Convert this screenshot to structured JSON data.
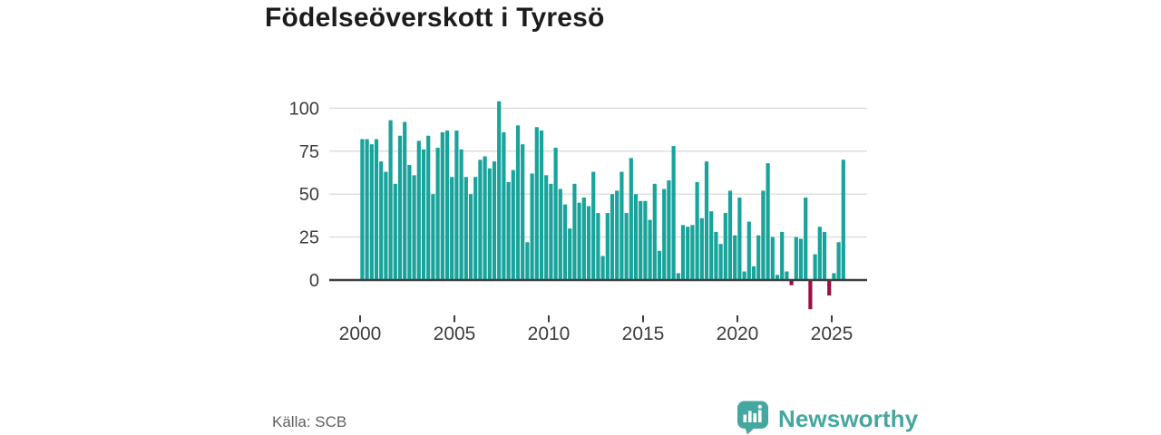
{
  "page": {
    "title": "Födelseöverskott i Tyresö"
  },
  "chart_data": {
    "type": "bar",
    "title": "Födelseöverskott i Tyresö",
    "frequency": "quarterly",
    "start_period": "2000 Q1",
    "end_period": "2025 Q3",
    "values": [
      82,
      82,
      79,
      82,
      69,
      63,
      93,
      56,
      84,
      92,
      67,
      61,
      81,
      76,
      84,
      50,
      77,
      86,
      87,
      60,
      87,
      76,
      60,
      50,
      60,
      70,
      72,
      65,
      69,
      104,
      86,
      57,
      64,
      90,
      79,
      22,
      62,
      89,
      87,
      61,
      56,
      77,
      53,
      44,
      30,
      56,
      45,
      48,
      43,
      63,
      39,
      14,
      39,
      50,
      52,
      63,
      39,
      71,
      50,
      46,
      46,
      35,
      56,
      17,
      53,
      58,
      78,
      4,
      32,
      31,
      32,
      57,
      36,
      69,
      40,
      28,
      21,
      39,
      52,
      26,
      48,
      5,
      34,
      8,
      26,
      52,
      68,
      25,
      3,
      28,
      5,
      -3,
      25,
      24,
      48,
      -17,
      15,
      31,
      28,
      -9,
      4,
      22,
      70
    ],
    "x_ticks_years": [
      2000,
      2005,
      2010,
      2015,
      2020,
      2025
    ],
    "x_tick_labels": [
      "2000",
      "2005",
      "2010",
      "2015",
      "2020",
      "2025"
    ],
    "y_ticks": [
      0,
      25,
      50,
      75,
      100
    ],
    "y_tick_labels": [
      "0",
      "25",
      "50",
      "75",
      "100"
    ],
    "ylim": [
      -20,
      107
    ],
    "grid": "horizontal",
    "legend": "none",
    "colors": {
      "bar_positive": "#18A39B",
      "bar_negative": "#9D0E45"
    }
  },
  "footer": {
    "source": "Källa: SCB",
    "brand": "Newsworthy",
    "brand_color": "#46A7A0"
  }
}
